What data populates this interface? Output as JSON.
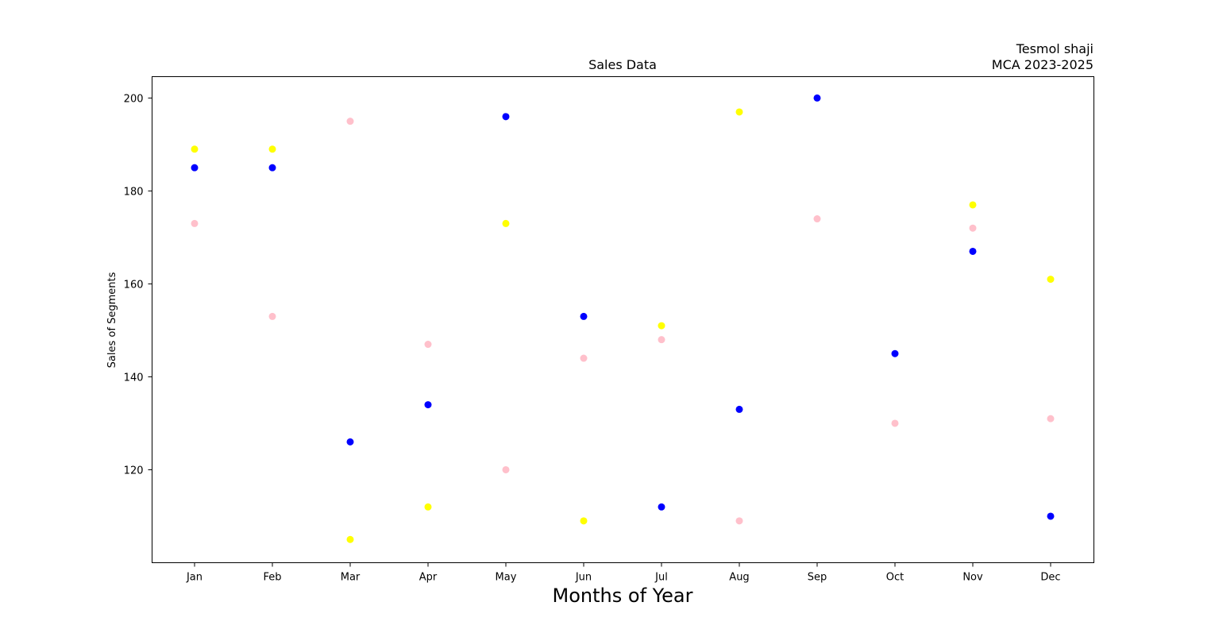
{
  "chart_data": {
    "type": "scatter",
    "title": "Sales Data",
    "right_title_lines": [
      "Tesmol shaji",
      "MCA 2023-2025"
    ],
    "xlabel": "Months of Year",
    "ylabel": "Sales of Segments",
    "categories": [
      "Jan",
      "Feb",
      "Mar",
      "Apr",
      "May",
      "Jun",
      "Jul",
      "Aug",
      "Sep",
      "Oct",
      "Nov",
      "Dec"
    ],
    "ylim": [
      100,
      204.6
    ],
    "yticks": [
      120,
      140,
      160,
      180,
      200
    ],
    "grid": false,
    "series": [
      {
        "color": "#0000ff",
        "values": [
          185,
          185,
          126,
          134,
          196,
          153,
          112,
          133,
          200,
          145,
          167,
          110
        ]
      },
      {
        "color": "#ffc0cb",
        "values": [
          173,
          153,
          195,
          147,
          120,
          144,
          148,
          109,
          174,
          130,
          172,
          131
        ]
      },
      {
        "color": "#ffff00",
        "values": [
          189,
          189,
          105,
          112,
          173,
          109,
          151,
          197,
          null,
          null,
          177,
          161
        ]
      }
    ]
  }
}
